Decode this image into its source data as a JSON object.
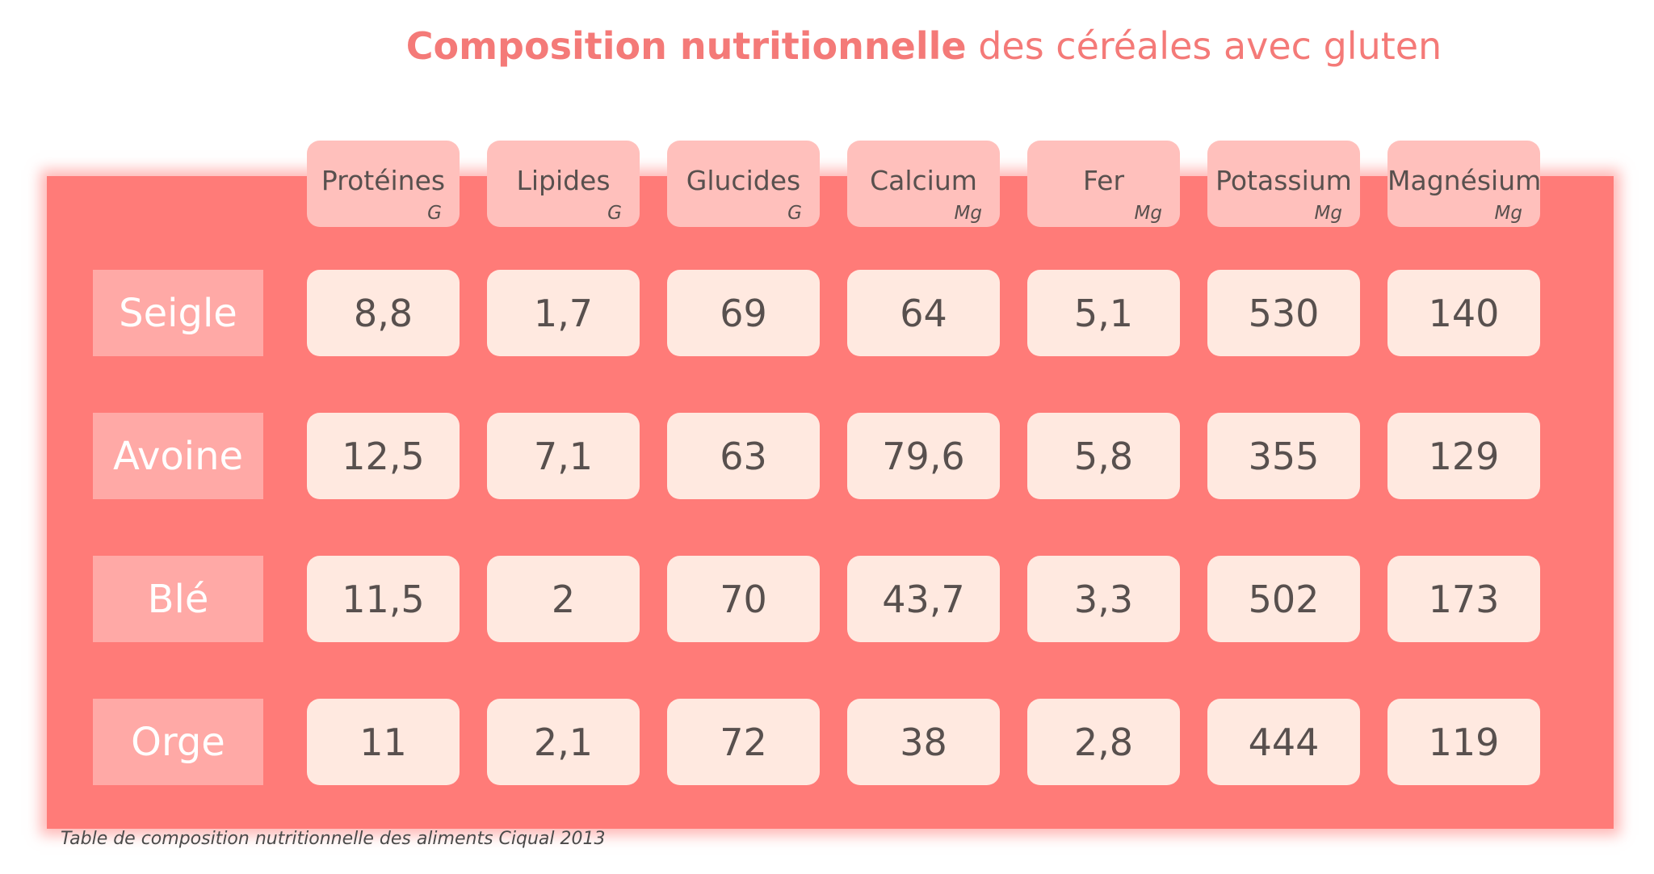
{
  "title": {
    "bold": "Composition nutritionnelle",
    "light": "des céréales avec gluten"
  },
  "chart_data": {
    "type": "table",
    "columns": [
      {
        "name": "Protéines",
        "unit": "G"
      },
      {
        "name": "Lipides",
        "unit": "G"
      },
      {
        "name": "Glucides",
        "unit": "G"
      },
      {
        "name": "Calcium",
        "unit": "Mg"
      },
      {
        "name": "Fer",
        "unit": "Mg"
      },
      {
        "name": "Potassium",
        "unit": "Mg"
      },
      {
        "name": "Magnésium",
        "unit": "Mg"
      }
    ],
    "rows": [
      {
        "label": "Seigle",
        "values": [
          "8,8",
          "1,7",
          "69",
          "64",
          "5,1",
          "530",
          "140"
        ]
      },
      {
        "label": "Avoine",
        "values": [
          "12,5",
          "7,1",
          "63",
          "79,6",
          "5,8",
          "355",
          "129"
        ]
      },
      {
        "label": "Blé",
        "values": [
          "11,5",
          "2",
          "70",
          "43,7",
          "3,3",
          "502",
          "173"
        ]
      },
      {
        "label": "Orge",
        "values": [
          "11",
          "2,1",
          "72",
          "38",
          "2,8",
          "444",
          "119"
        ]
      }
    ]
  },
  "source": "Table de composition nutritionnelle des aliments Ciqual 2013",
  "colors": {
    "accent": "#f47a78",
    "panel": "#ff7b78",
    "header": "#ffc0bc",
    "row_label": "#ffa9a6",
    "cell": "#ffe9e0",
    "text": "#58504e"
  }
}
